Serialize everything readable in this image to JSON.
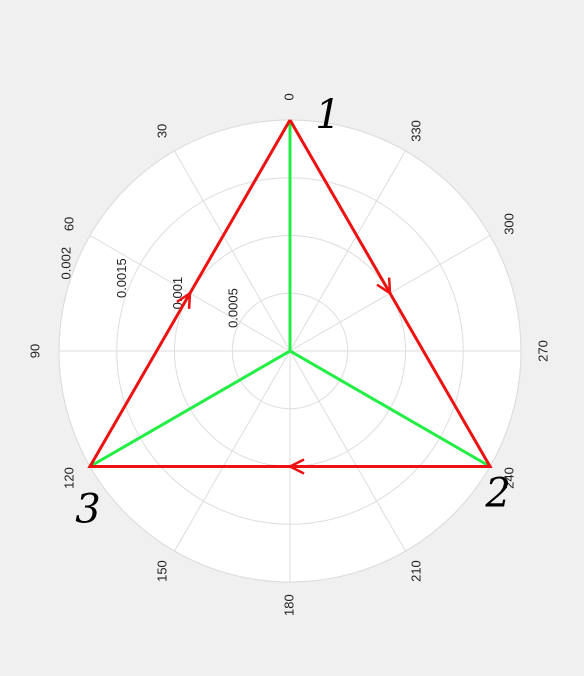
{
  "chart_data": {
    "type": "polar-line",
    "angle_ticks": [
      "0",
      "30",
      "60",
      "90",
      "120",
      "150",
      "180",
      "210",
      "240",
      "270",
      "300",
      "330"
    ],
    "angle_values": [
      0,
      30,
      60,
      90,
      120,
      150,
      180,
      210,
      240,
      270,
      300,
      330
    ],
    "angle_direction": "counterclockwise",
    "zero_location": "top",
    "radial_ticks": [
      "0.0005",
      "0.001",
      "0.0015",
      "0.002"
    ],
    "radial_values": [
      0.0005,
      0.001,
      0.0015,
      0.002
    ],
    "rlim": [
      0,
      0.002
    ],
    "grid": true,
    "series": [
      {
        "color": "#22ee44",
        "points": [
          {
            "theta": 0,
            "r": 0.002
          },
          {
            "theta": 0,
            "r": 0
          },
          {
            "theta": 120,
            "r": 0.002
          },
          {
            "theta": 0,
            "r": 0
          },
          {
            "theta": 240,
            "r": 0.002
          }
        ]
      },
      {
        "color": "#ee1111",
        "points": [
          {
            "theta": 0,
            "r": 0.002
          },
          {
            "theta": 240,
            "r": 0.002
          },
          {
            "theta": 120,
            "r": 0.002
          },
          {
            "theta": 0,
            "r": 0.002
          }
        ],
        "arrows": [
          {
            "from_theta": 0,
            "to_theta": 240
          },
          {
            "from_theta": 240,
            "to_theta": 120
          },
          {
            "from_theta": 120,
            "to_theta": 0
          }
        ]
      }
    ],
    "annotations": [
      {
        "text": "1",
        "theta": 0
      },
      {
        "text": "2",
        "theta": 240
      },
      {
        "text": "3",
        "theta": 120
      }
    ]
  },
  "colors": {
    "background": "#f0f0f0",
    "plot_area": "#ffffff",
    "grid": "#dddddd",
    "text": "#222222"
  }
}
